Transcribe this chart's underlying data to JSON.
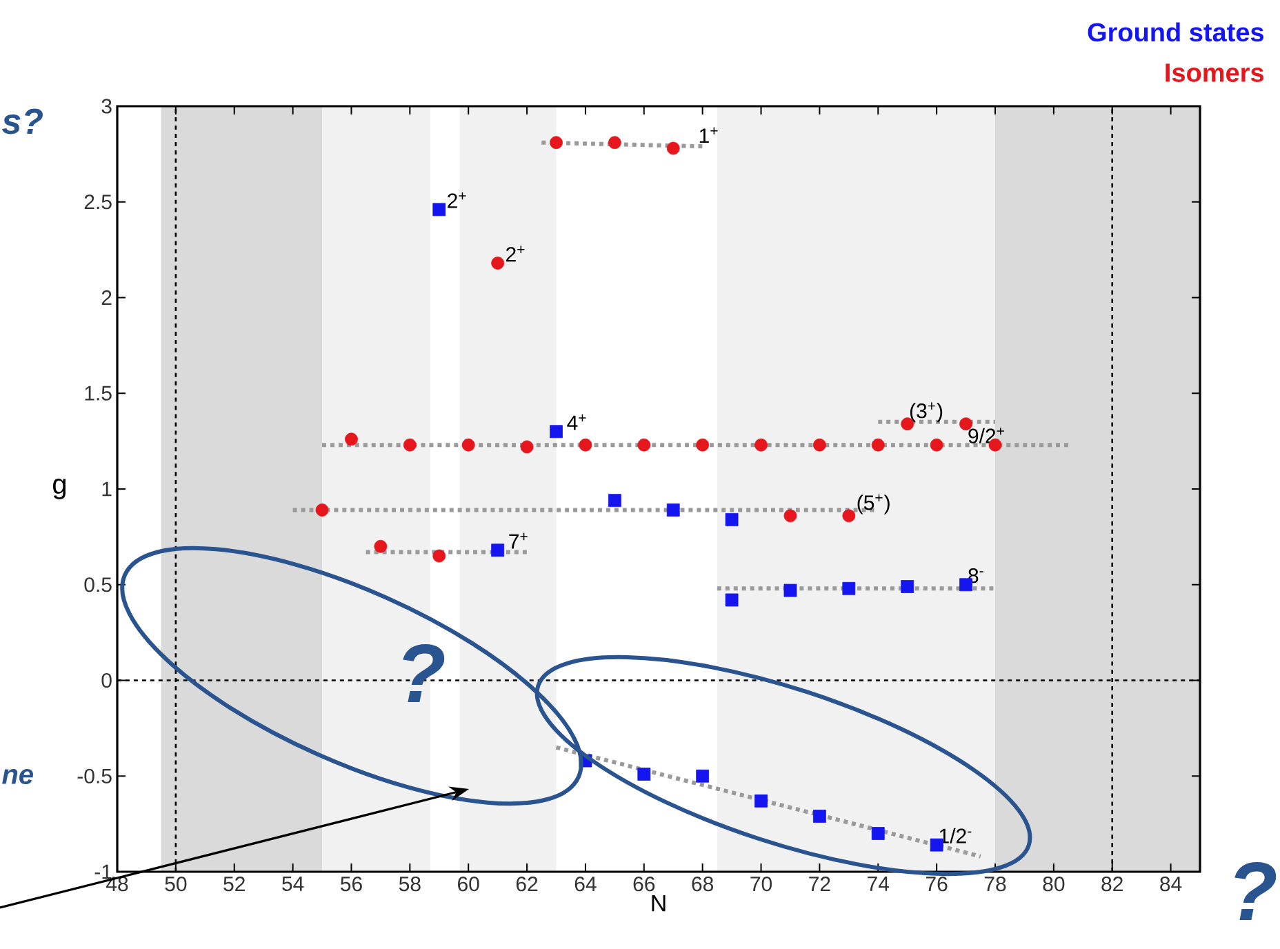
{
  "chart_data": {
    "type": "scatter",
    "xlabel": "N",
    "ylabel": "g",
    "xlim": [
      48,
      85
    ],
    "ylim": [
      -1,
      3
    ],
    "xticks": [
      48,
      50,
      52,
      54,
      56,
      58,
      60,
      62,
      64,
      66,
      68,
      70,
      72,
      74,
      76,
      78,
      80,
      82,
      84
    ],
    "yticks": [
      -1,
      -0.5,
      0,
      0.5,
      1,
      1.5,
      2,
      2.5,
      3
    ],
    "legend": "top right",
    "series": [
      {
        "name": "Ground states",
        "color": "#1515f0",
        "marker": "square",
        "x": [
          59,
          63,
          65,
          67,
          69,
          61,
          69,
          71,
          73,
          75,
          77,
          64,
          66,
          68,
          70,
          72,
          74,
          76
        ],
        "values": [
          2.46,
          1.3,
          0.94,
          0.89,
          0.84,
          0.68,
          0.42,
          0.47,
          0.48,
          0.49,
          0.5,
          -0.42,
          -0.49,
          -0.5,
          -0.63,
          -0.71,
          -0.8,
          -0.86
        ]
      },
      {
        "name": "Isomers",
        "color": "#e5171c",
        "marker": "circle",
        "x": [
          63,
          65,
          67,
          61,
          56,
          58,
          60,
          62,
          64,
          66,
          68,
          70,
          72,
          74,
          76,
          78,
          75,
          77,
          55,
          71,
          73,
          57,
          59
        ],
        "values": [
          2.81,
          2.81,
          2.78,
          2.18,
          1.26,
          1.23,
          1.23,
          1.22,
          1.23,
          1.23,
          1.23,
          1.23,
          1.23,
          1.23,
          1.23,
          1.23,
          1.34,
          1.34,
          0.89,
          0.86,
          0.86,
          0.7,
          0.65
        ]
      },
      {
        "type": "line",
        "color": "#9a9a9a",
        "line_style": "dashed",
        "marker": "none",
        "x": [
          62.5,
          68
        ],
        "values": [
          2.81,
          2.79
        ]
      },
      {
        "type": "line",
        "color": "#9a9a9a",
        "line_style": "dashed",
        "marker": "none",
        "x": [
          55,
          80.5
        ],
        "values": [
          1.23,
          1.23
        ]
      },
      {
        "type": "line",
        "color": "#9a9a9a",
        "line_style": "dashed",
        "marker": "none",
        "x": [
          74,
          78
        ],
        "values": [
          1.35,
          1.35
        ]
      },
      {
        "type": "line",
        "color": "#9a9a9a",
        "line_style": "dashed",
        "marker": "none",
        "x": [
          54,
          74
        ],
        "values": [
          0.89,
          0.89
        ]
      },
      {
        "type": "line",
        "color": "#9a9a9a",
        "line_style": "dashed",
        "marker": "none",
        "x": [
          56.5,
          62
        ],
        "values": [
          0.67,
          0.67
        ]
      },
      {
        "type": "line",
        "color": "#9a9a9a",
        "line_style": "dashed",
        "marker": "none",
        "x": [
          68.5,
          78
        ],
        "values": [
          0.48,
          0.48
        ]
      },
      {
        "type": "line",
        "color": "#9a9a9a",
        "line_style": "dashed",
        "marker": "none",
        "x": [
          63,
          77.5
        ],
        "values": [
          -0.35,
          -0.92
        ]
      }
    ],
    "ref_lines": [
      {
        "axis": "x",
        "value": 50,
        "line_style": "dashed"
      },
      {
        "axis": "x",
        "value": 82,
        "line_style": "dashed"
      },
      {
        "axis": "y",
        "value": 0,
        "line_style": "dashed"
      }
    ],
    "bands": [
      {
        "axis": "x",
        "from": 49.5,
        "to": 55,
        "color": "#dadada"
      },
      {
        "axis": "x",
        "from": 78,
        "to": 85,
        "color": "#dadada"
      },
      {
        "axis": "x",
        "from": 55,
        "to": 58.7,
        "color": "#f1f1f1"
      },
      {
        "axis": "x",
        "from": 59.7,
        "to": 63,
        "color": "#f1f1f1"
      },
      {
        "axis": "x",
        "from": 68.5,
        "to": 78,
        "color": "#f1f1f1"
      }
    ],
    "annotations": [
      {
        "text": "1$^{+}$",
        "x": 67.8,
        "y": 2.8
      },
      {
        "text": "2$^{+}$",
        "x": 59.2,
        "y": 2.46
      },
      {
        "text": "2$^{+}$",
        "x": 61.2,
        "y": 2.18
      },
      {
        "text": "4$^{+}$",
        "x": 63.3,
        "y": 1.3
      },
      {
        "text": "(3$^{+}$)",
        "x": 75,
        "y": 1.34
      },
      {
        "text": "9/2$^{+}$",
        "x": 77,
        "y": 1.23
      },
      {
        "text": "(5$^{+}$)",
        "x": 73.2,
        "y": 0.86
      },
      {
        "text": "7$^{+}$",
        "x": 61.3,
        "y": 0.68
      },
      {
        "text": "8$^{-}$",
        "x": 77,
        "y": 0.5
      },
      {
        "text": "1/2$^{-}$",
        "x": 76,
        "y": -0.86
      },
      "s?",
      "ne",
      "?",
      "?"
    ]
  }
}
